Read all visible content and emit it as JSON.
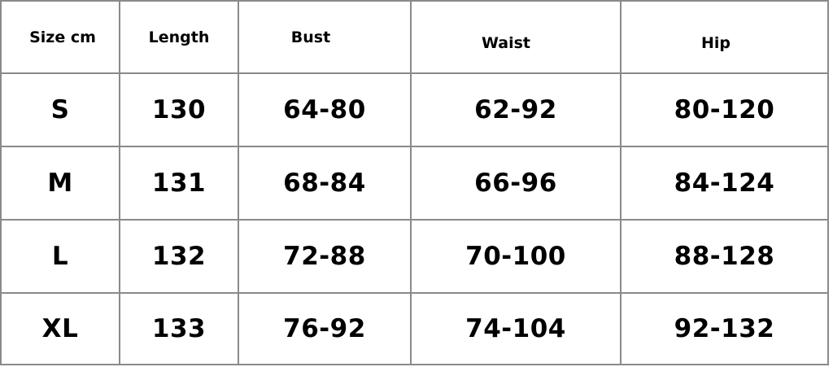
{
  "table": {
    "headers": [
      "Size cm",
      "Length",
      "Bust",
      "Waist",
      "Hip"
    ],
    "rows": [
      [
        "S",
        "130",
        "64-80",
        "62-92",
        "80-120"
      ],
      [
        "M",
        "131",
        "68-84",
        "66-96",
        "84-124"
      ],
      [
        "L",
        "132",
        "72-88",
        "70-100",
        "88-128"
      ],
      [
        "XL",
        "133",
        "76-92",
        "74-104",
        "92-132"
      ]
    ]
  }
}
